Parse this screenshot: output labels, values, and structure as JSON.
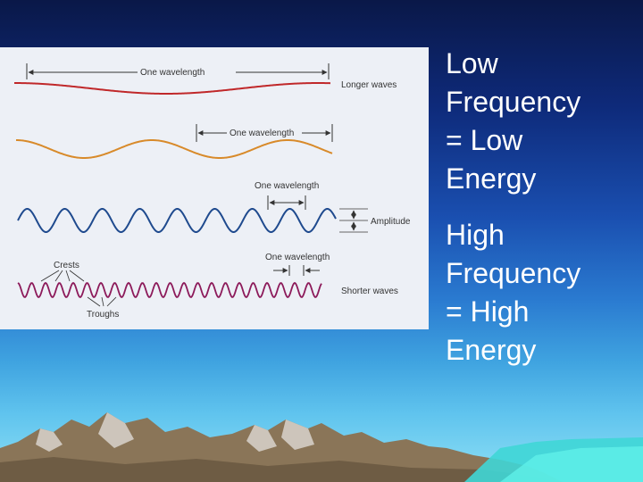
{
  "diagram": {
    "labels": {
      "one_wavelength_1": "One wavelength",
      "one_wavelength_2": "One wavelength",
      "one_wavelength_3": "One wavelength",
      "one_wavelength_4": "One wavelength",
      "longer_waves": "Longer waves",
      "amplitude": "Amplitude",
      "crests": "Crests",
      "troughs": "Troughs",
      "shorter_waves": "Shorter waves"
    },
    "colors": {
      "wave_red": "#c0282a",
      "wave_orange": "#d88a2a",
      "wave_blue": "#1f4a8e",
      "wave_purple": "#8c1a5a"
    }
  },
  "statements": {
    "low": [
      "Low",
      "Frequency",
      "= Low",
      "Energy"
    ],
    "high": [
      "High",
      "Frequency",
      "= High",
      "Energy"
    ]
  }
}
